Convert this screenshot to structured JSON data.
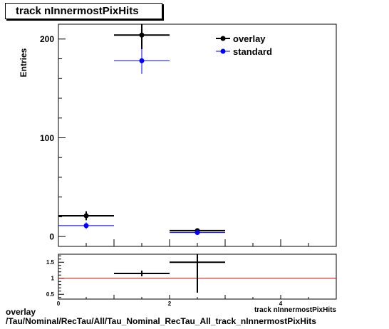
{
  "title": "track nInnermostPixHits",
  "footer": {
    "line1": "overlay",
    "line2": "/Tau/Nominal/RecTau/All/Tau_Nominal_RecTau_All_track_nInnermostPixHits"
  },
  "chart_data": [
    {
      "type": "scatter",
      "panel": "main",
      "ylabel": "Entries",
      "xlim": [
        0,
        5
      ],
      "ylim": [
        -10,
        215
      ],
      "yticks": [
        0,
        100,
        200
      ],
      "legend_position": "top-right",
      "bin_width": 1,
      "series": [
        {
          "name": "overlay",
          "color": "#000000",
          "x": [
            0.5,
            1.5,
            2.5
          ],
          "y": [
            21,
            204,
            6
          ],
          "yerr": [
            4.6,
            14.3,
            2.4
          ]
        },
        {
          "name": "standard",
          "color": "#0000ff",
          "x": [
            0.5,
            1.5,
            2.5
          ],
          "y": [
            11,
            178,
            4
          ],
          "yerr": [
            3.3,
            13.3,
            2.0
          ]
        }
      ]
    },
    {
      "type": "scatter",
      "panel": "ratio",
      "xlabel": "track nInnermostPixHits",
      "xlim": [
        0,
        5
      ],
      "ylim": [
        0.35,
        1.75
      ],
      "yticks": [
        0.5,
        1,
        1.5
      ],
      "xticks": [
        0,
        2,
        4
      ],
      "reference_line": {
        "y": 1,
        "color": "#cc0000"
      },
      "series": [
        {
          "color": "#000000",
          "x": [
            1.5,
            2.5
          ],
          "y": [
            1.15,
            1.5
          ],
          "yerr": [
            0.09,
            0.95
          ]
        }
      ]
    }
  ]
}
